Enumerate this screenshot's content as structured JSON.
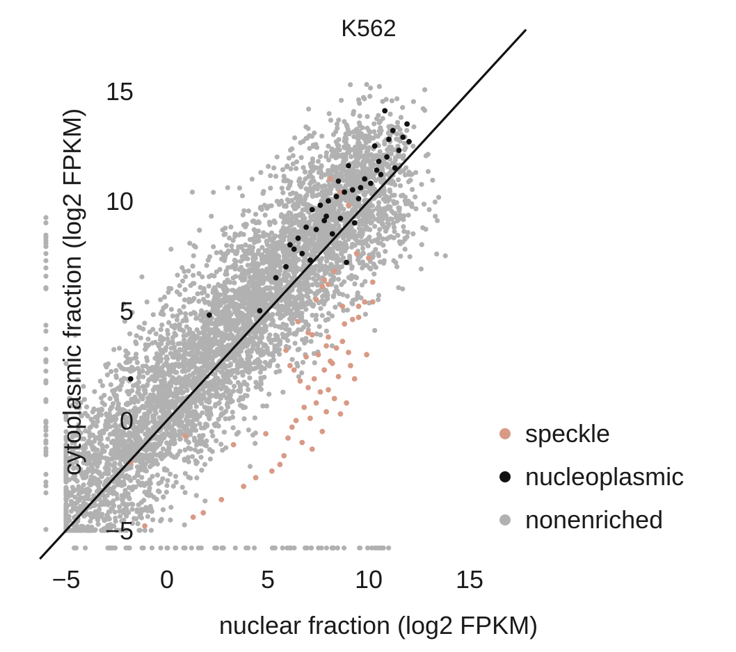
{
  "chart_data": {
    "type": "scatter",
    "title": "K562",
    "xlabel": "nuclear fraction (log2 FPKM)",
    "ylabel": "cytoplasmic fraction (log2 FPKM)",
    "xlim": [
      -6,
      18
    ],
    "ylim": [
      -6.2,
      18
    ],
    "xticks": [
      -5,
      0,
      5,
      10,
      15
    ],
    "yticks": [
      -5,
      0,
      5,
      10,
      15
    ],
    "grid": false,
    "legend": "right",
    "reference_line": {
      "slope": 1,
      "intercept": 0,
      "color": "#111111"
    },
    "series": [
      {
        "name": "speckle",
        "color": "#d89a86",
        "x": [
          8.1,
          8.6,
          9.0,
          9.4,
          10.0,
          10.2,
          9.8,
          9.5,
          8.3,
          7.7,
          9.2,
          8.8,
          7.2,
          8.0,
          8.7,
          7.9,
          9.0,
          8.4,
          7.5,
          6.9,
          8.2,
          7.8,
          9.1,
          8.5,
          7.3,
          6.6,
          7.0,
          7.6,
          8.0,
          8.3,
          7.4,
          6.8,
          7.9,
          8.6,
          7.1,
          6.4,
          6.2,
          7.7,
          8.9,
          9.3,
          6.0,
          6.7,
          7.2,
          8.1,
          5.8,
          6.3,
          5.6,
          5.2,
          4.9,
          4.4,
          3.8,
          3.3,
          2.7,
          1.8,
          1.3,
          0.9,
          -1.1,
          -1.8,
          9.5,
          10.2,
          9.9,
          8.7,
          8.0,
          7.4,
          6.5,
          5.9,
          6.1,
          7.0,
          7.8
        ],
        "y": [
          11.0,
          10.4,
          9.8,
          7.6,
          7.4,
          6.3,
          5.4,
          5.2,
          6.8,
          6.1,
          4.6,
          4.4,
          3.9,
          3.8,
          3.6,
          3.4,
          3.1,
          3.3,
          3.0,
          2.9,
          2.6,
          2.3,
          2.5,
          2.0,
          1.9,
          1.8,
          1.5,
          1.3,
          1.4,
          1.0,
          0.8,
          0.6,
          0.4,
          0.3,
          0.1,
          0.0,
          -0.3,
          -0.5,
          0.8,
          1.9,
          -0.8,
          -1.0,
          -1.3,
          2.7,
          -1.6,
          2.3,
          -2.0,
          -2.3,
          -0.6,
          -2.6,
          -3.0,
          -1.1,
          -3.6,
          -4.2,
          -4.4,
          -0.7,
          -4.8,
          -1.9,
          4.7,
          5.4,
          3.0,
          5.2,
          6.2,
          5.5,
          4.5,
          3.2,
          2.5,
          4.0,
          6.4
        ]
      },
      {
        "name": "nucleoplasmic",
        "color": "#111111",
        "x": [
          10.8,
          11.2,
          11.7,
          12.0,
          11.5,
          10.9,
          10.5,
          11.3,
          10.6,
          9.8,
          10.1,
          9.6,
          9.2,
          8.8,
          8.4,
          8.0,
          7.6,
          7.2,
          7.9,
          8.6,
          9.3,
          6.9,
          7.4,
          8.2,
          6.5,
          6.1,
          6.7,
          7.1,
          5.9,
          5.4,
          4.6,
          2.1,
          -1.8,
          10.3,
          9.0,
          8.5,
          7.8,
          6.3,
          11.0,
          11.9,
          10.4,
          9.5,
          8.9
        ],
        "y": [
          14.1,
          13.2,
          12.9,
          12.7,
          12.3,
          12.0,
          11.8,
          11.5,
          11.2,
          11.0,
          10.8,
          10.6,
          10.5,
          10.4,
          10.2,
          10.0,
          9.8,
          9.6,
          9.3,
          9.2,
          9.0,
          8.8,
          8.7,
          8.5,
          8.3,
          8.0,
          7.6,
          7.3,
          7.0,
          6.5,
          5.0,
          4.8,
          1.9,
          12.5,
          11.6,
          10.9,
          9.1,
          7.8,
          12.8,
          13.5,
          11.4,
          10.1,
          7.2
        ]
      },
      {
        "name": "nonenriched",
        "color": "#b1b1b1",
        "x": [],
        "y": []
      }
    ]
  }
}
